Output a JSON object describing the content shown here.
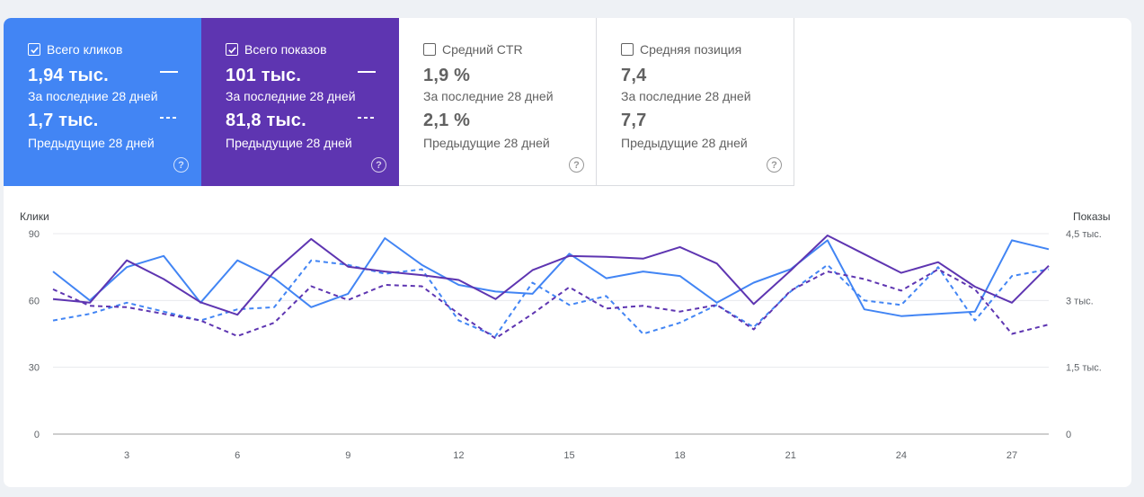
{
  "cards": [
    {
      "title": "Всего кликов",
      "checked": true,
      "value": "1,94 тыс.",
      "value_period": "За последние 28 дней",
      "prev_value": "1,7 тыс.",
      "prev_period": "Предыдущие 28 дней",
      "help_icon": "help-circle-icon",
      "color": "#4285f4"
    },
    {
      "title": "Всего показов",
      "checked": true,
      "value": "101 тыс.",
      "value_period": "За последние 28 дней",
      "prev_value": "81,8 тыс.",
      "prev_period": "Предыдущие 28 дней",
      "help_icon": "help-circle-icon",
      "color": "#5e35b1"
    },
    {
      "title": "Средний CTR",
      "checked": false,
      "value": "1,9 %",
      "value_period": "За последние 28 дней",
      "prev_value": "2,1 %",
      "prev_period": "Предыдущие 28 дней",
      "help_icon": "help-circle-icon"
    },
    {
      "title": "Средняя позиция",
      "checked": false,
      "value": "7,4",
      "value_period": "За последние 28 дней",
      "prev_value": "7,7",
      "prev_period": "Предыдущие 28 дней",
      "help_icon": "help-circle-icon"
    }
  ],
  "help_glyph": "?",
  "chart_data": {
    "type": "line",
    "ylabel_left": "Клики",
    "ylabel_right": "Показы",
    "ylim_left": [
      0,
      90
    ],
    "ylim_right": [
      0,
      4500
    ],
    "yticks_left": [
      "90",
      "60",
      "30",
      "0"
    ],
    "yticks_right": [
      "4,5 тыс.",
      "3 тыс.",
      "1,5 тыс.",
      "0"
    ],
    "x": [
      1,
      2,
      3,
      4,
      5,
      6,
      7,
      8,
      9,
      10,
      11,
      12,
      13,
      14,
      15,
      16,
      17,
      18,
      19,
      20,
      21,
      22,
      23,
      24,
      25,
      26,
      27,
      28
    ],
    "xticks": [
      3,
      6,
      9,
      12,
      15,
      18,
      21,
      24,
      27
    ],
    "grid": true,
    "series": [
      {
        "axis": "left",
        "style": "solid",
        "color": "#4285f4",
        "values": [
          73,
          60,
          75,
          80,
          59,
          78,
          70,
          57,
          63,
          88,
          76,
          67,
          64,
          63,
          81,
          70,
          73,
          71,
          59,
          68,
          74,
          87,
          56,
          53,
          54,
          55,
          87,
          83
        ]
      },
      {
        "axis": "left",
        "style": "dashed",
        "color": "#4285f4",
        "values": [
          51,
          54,
          59,
          55,
          51,
          56,
          57,
          78,
          76,
          72,
          74,
          51,
          44,
          68,
          58,
          62,
          45,
          50,
          58,
          48,
          64,
          76,
          60,
          58,
          75,
          51,
          71,
          74
        ]
      },
      {
        "axis": "right",
        "style": "solid",
        "color": "#5e35b1",
        "values": [
          3030,
          2950,
          3900,
          3480,
          2960,
          2680,
          3650,
          4380,
          3760,
          3650,
          3570,
          3460,
          3030,
          3680,
          4000,
          3980,
          3940,
          4200,
          3830,
          2920,
          3670,
          4460,
          4040,
          3620,
          3860,
          3310,
          2950,
          3780
        ]
      },
      {
        "axis": "right",
        "style": "dashed",
        "color": "#5e35b1",
        "values": [
          3250,
          2880,
          2850,
          2700,
          2550,
          2200,
          2500,
          3320,
          3010,
          3350,
          3320,
          2700,
          2150,
          2700,
          3300,
          2820,
          2880,
          2750,
          2900,
          2350,
          3220,
          3650,
          3480,
          3220,
          3700,
          3250,
          2250,
          2460
        ]
      }
    ]
  }
}
